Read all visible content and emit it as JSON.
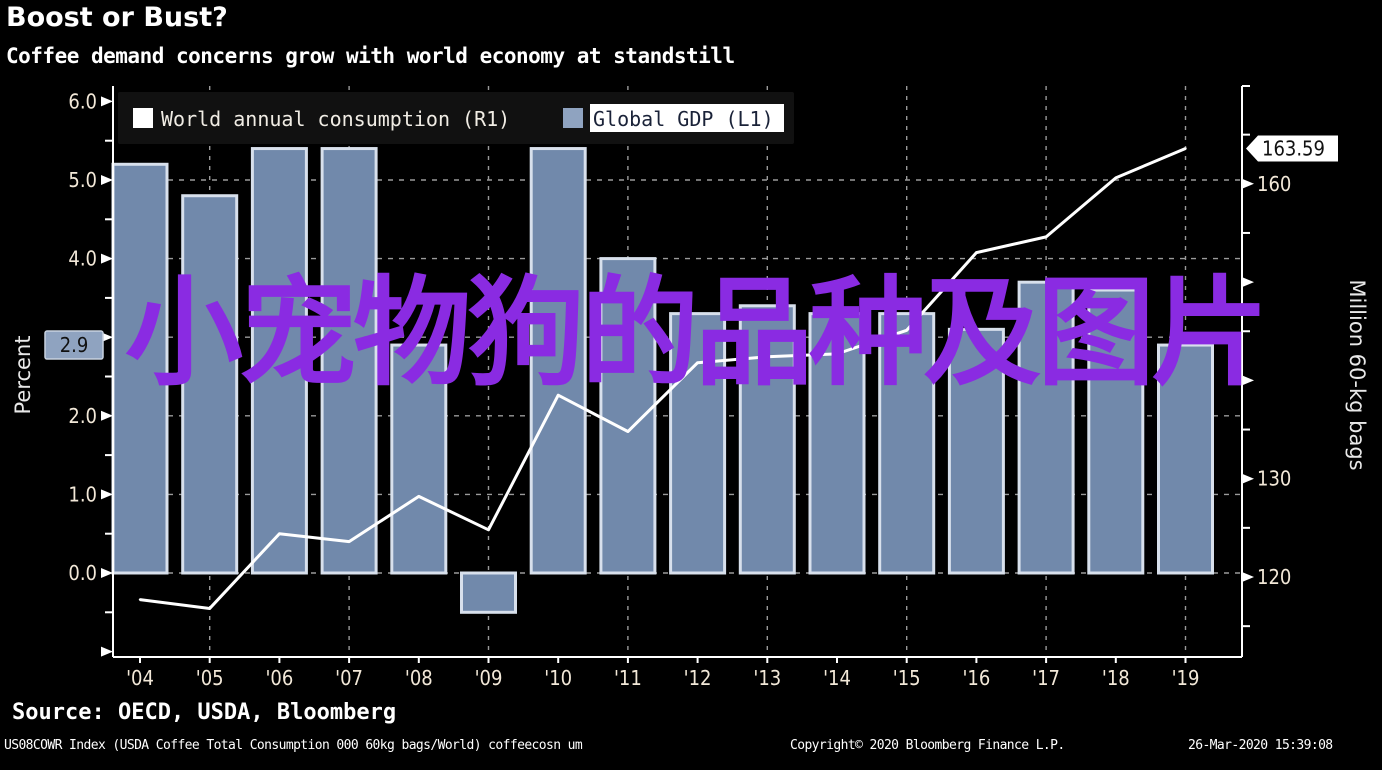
{
  "header": {
    "title": "Boost or Bust?",
    "subtitle": "Coffee demand concerns grow with world economy at standstill"
  },
  "footer": {
    "source": "Source: OECD, USDA, Bloomberg",
    "index_note": "US08COWR Index (USDA Coffee Total Consumption 000 60kg bags/World) coffeecosn um",
    "copyright": "Copyright© 2020 Bloomberg Finance L.P.",
    "timestamp": "26-Mar-2020 15:39:08"
  },
  "watermark": "小宠物狗的品种及图片",
  "colors": {
    "background": "#000000",
    "bar_fill": "#7189ab",
    "bar_stroke": "#d8e0ec",
    "line": "#ffffff",
    "watermark": "#8a2be2",
    "grid": "#9a9a9a"
  },
  "chart_data": {
    "type": "bar+line",
    "title": "Boost or Bust?",
    "subtitle": "Coffee demand concerns grow with world economy at standstill",
    "categories": [
      "'04",
      "'05",
      "'06",
      "'07",
      "'08",
      "'09",
      "'10",
      "'11",
      "'12",
      "'13",
      "'14",
      "'15",
      "'16",
      "'17",
      "'18",
      "'19"
    ],
    "series": [
      {
        "name": "Global GDP (L1)",
        "type": "bar",
        "axis": "left",
        "values": [
          5.2,
          4.8,
          5.4,
          5.4,
          2.9,
          -0.5,
          5.4,
          4.0,
          3.3,
          3.4,
          3.3,
          3.3,
          3.1,
          3.7,
          3.6,
          2.9
        ]
      },
      {
        "name": "World annual consumption (R1)",
        "type": "line",
        "axis": "right",
        "values": [
          117.7,
          116.8,
          124.4,
          123.6,
          128.2,
          124.8,
          138.5,
          134.8,
          141.8,
          142.4,
          142.7,
          145.1,
          153.0,
          154.6,
          160.6,
          163.59
        ]
      }
    ],
    "left_axis": {
      "label": "Percent",
      "ylim": [
        -1.0,
        6.5
      ],
      "ticks": [
        0.0,
        1.0,
        2.0,
        4.0,
        5.0,
        6.0
      ],
      "tick_labels": [
        "0.0",
        "1.0",
        "2.0",
        "4.0",
        "5.0",
        "6.0"
      ],
      "last_value_label": "2.9"
    },
    "right_axis": {
      "label": "Million 60-kg bags",
      "ylim": [
        112,
        167
      ],
      "ticks": [
        120,
        130,
        160
      ],
      "tick_labels": [
        "120",
        "130",
        "160"
      ],
      "last_value_label": "163.59"
    },
    "legend": {
      "placement": "top-left",
      "entries": [
        {
          "label": "World annual consumption  (R1)",
          "swatch": "#ffffff"
        },
        {
          "label": "Global GDP (L1)",
          "swatch": "#8fa3c0",
          "highlighted": true
        }
      ]
    },
    "grid": true
  }
}
